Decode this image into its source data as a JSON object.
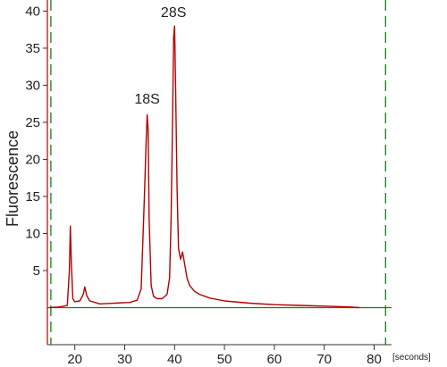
{
  "chart_data": {
    "type": "line",
    "title": "",
    "xlabel": "",
    "x_unit_label": "[seconds]",
    "ylabel": "Fluorescence",
    "xlim": [
      14.5,
      83.5
    ],
    "ylim": [
      -5,
      41.5
    ],
    "x_ticks": [
      20,
      30,
      40,
      50,
      60,
      70,
      80
    ],
    "y_ticks": [
      5,
      10,
      15,
      20,
      25,
      30,
      35,
      40
    ],
    "marker_lines_x": [
      15.2,
      82.3
    ],
    "baseline_y": 0,
    "grid": false,
    "legend": "none",
    "colors": {
      "trace": "#b30000",
      "baseline": "#1a7a1a",
      "markers": "#1a7a1a",
      "y_axis": "#b30000",
      "text": "#222222"
    },
    "annotations": [
      {
        "text": "18S",
        "x": 34.5,
        "y": 27.5
      },
      {
        "text": "28S",
        "x": 39.8,
        "y": 39.2
      }
    ],
    "series": [
      {
        "x": [
          15.0,
          17.0,
          18.5,
          18.9,
          19.1,
          19.3,
          19.6,
          20.0,
          21.0,
          21.7,
          22.0,
          22.4,
          23.0,
          25.0,
          28.0,
          31.0,
          32.5,
          33.3,
          33.7,
          34.0,
          34.3,
          34.5,
          34.7,
          34.9,
          35.3,
          35.8,
          36.5,
          37.5,
          38.5,
          39.0,
          39.3,
          39.6,
          39.8,
          40.0,
          40.2,
          40.5,
          40.8,
          41.2,
          41.6,
          42.0,
          42.5,
          43.0,
          44.0,
          45.0,
          47.0,
          50.0,
          55.0,
          60.0,
          65.0,
          70.0,
          72.0,
          75.0,
          77.0
        ],
        "y": [
          0.0,
          0.1,
          0.3,
          5.0,
          11.0,
          6.0,
          1.2,
          0.8,
          0.9,
          1.8,
          2.8,
          1.6,
          0.9,
          0.5,
          0.6,
          0.7,
          1.0,
          2.5,
          10.0,
          16.0,
          22.5,
          26.0,
          24.0,
          12.0,
          3.0,
          1.5,
          1.2,
          1.2,
          1.8,
          4.0,
          12.0,
          26.0,
          36.5,
          38.0,
          30.0,
          16.0,
          8.0,
          6.5,
          7.5,
          6.0,
          4.0,
          3.0,
          2.2,
          1.8,
          1.3,
          0.9,
          0.6,
          0.4,
          0.3,
          0.2,
          0.15,
          0.1,
          0.0
        ]
      }
    ]
  }
}
